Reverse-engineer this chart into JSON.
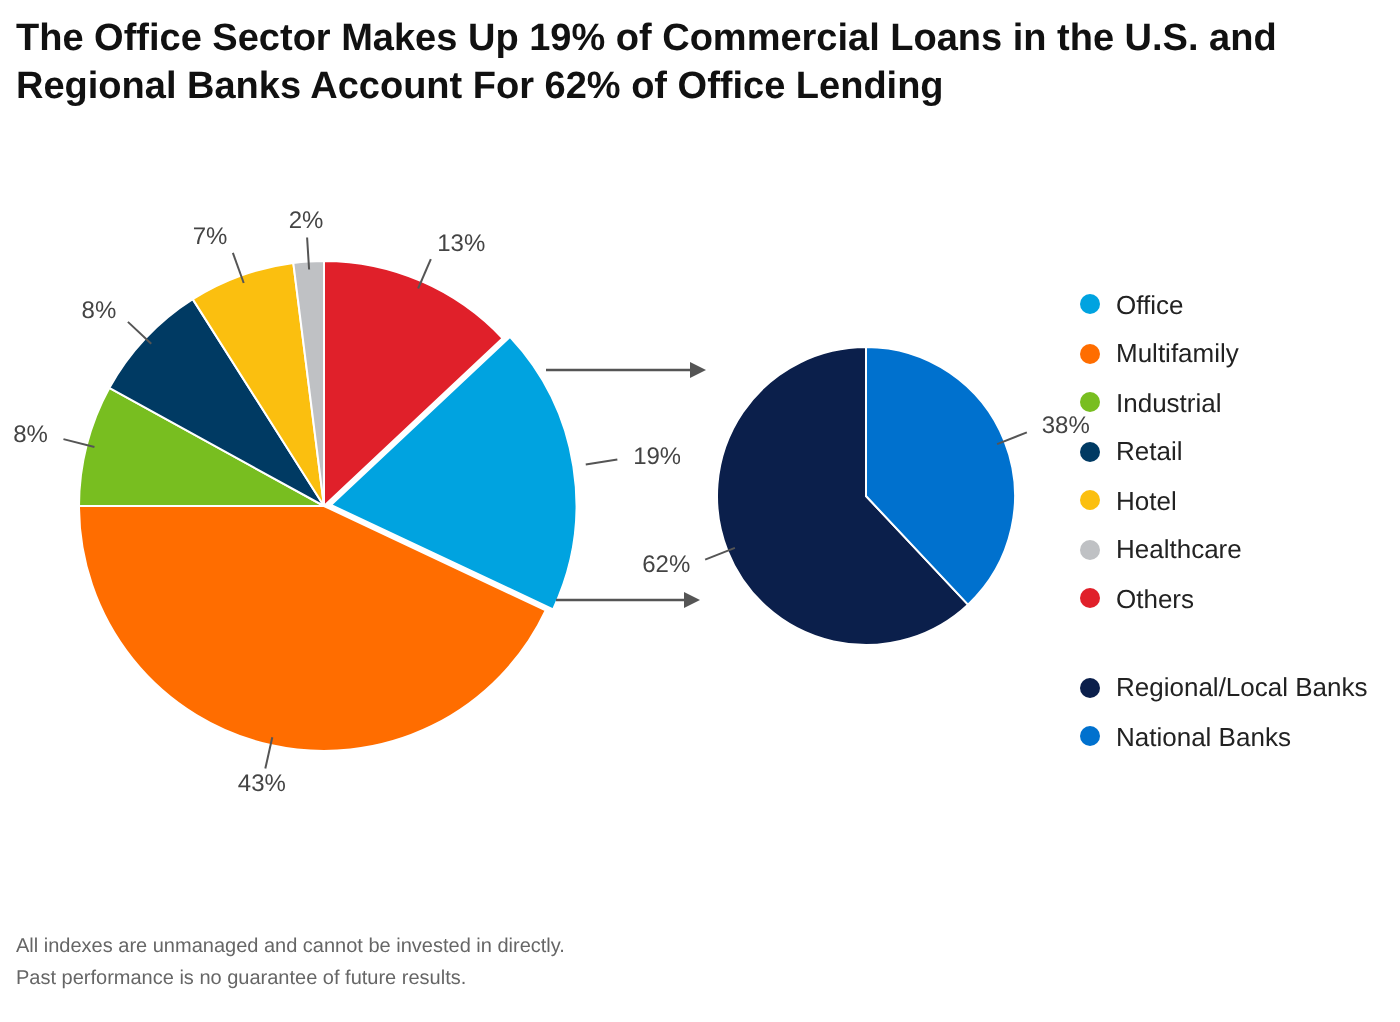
{
  "chart_data": [
    {
      "type": "pie",
      "title": "The Office Sector Makes Up 19% of Commercial Loans in the U.S. and Regional Banks Account For 62% of Office Lending",
      "categories": [
        "Office",
        "Multifamily",
        "Industrial",
        "Retail",
        "Hotel",
        "Healthcare",
        "Others"
      ],
      "values": [
        19,
        43,
        8,
        8,
        7,
        2,
        13
      ],
      "value_labels": [
        "19%",
        "43%",
        "8%",
        "8%",
        "7%",
        "2%",
        "13%"
      ],
      "colors": [
        "#00a3e0",
        "#ff6d00",
        "#78be20",
        "#003a63",
        "#fbbf0f",
        "#bfc1c4",
        "#e0202a"
      ],
      "legend": "right",
      "annotations": [
        "All indexes are unmanaged and cannot be invested in directly.",
        "Past performance is no guarantee of future results."
      ]
    },
    {
      "type": "pie",
      "categories": [
        "Regional/Local Banks",
        "National Banks"
      ],
      "values": [
        62,
        38
      ],
      "value_labels": [
        "62%",
        "38%"
      ],
      "colors": [
        "#0b1f4b",
        "#0071ce"
      ],
      "legend": "right"
    }
  ]
}
